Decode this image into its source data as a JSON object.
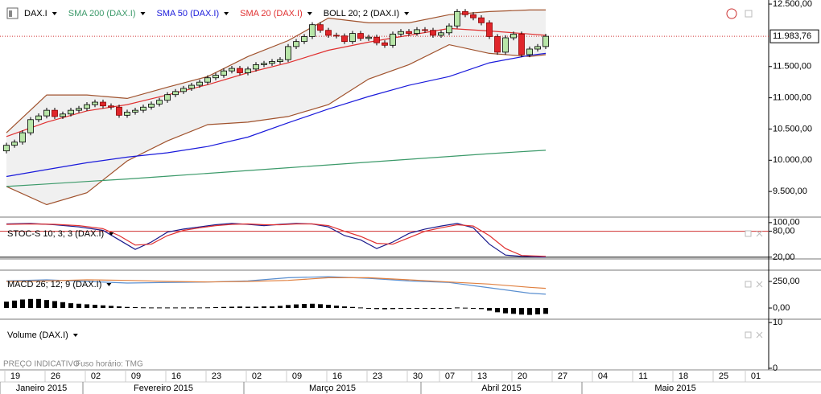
{
  "chart_data": [
    {
      "type": "candlestick",
      "xlim": [
        -0.8,
        94.7
      ],
      "xticks": [
        {
          "value": 0,
          "label": "19"
        },
        {
          "value": 5,
          "label": "26"
        },
        {
          "value": 10,
          "label": "02"
        },
        {
          "value": 15,
          "label": "09"
        },
        {
          "value": 20,
          "label": "16"
        },
        {
          "value": 25,
          "label": "23"
        },
        {
          "value": 30,
          "label": "02"
        },
        {
          "value": 35,
          "label": "09"
        },
        {
          "value": 40,
          "label": "16"
        },
        {
          "value": 45,
          "label": "23"
        },
        {
          "value": 50,
          "label": "30"
        },
        {
          "value": 54,
          "label": "07"
        },
        {
          "value": 58,
          "label": "13"
        },
        {
          "value": 63,
          "label": "20"
        },
        {
          "value": 68,
          "label": "27"
        },
        {
          "value": 73,
          "label": "04"
        },
        {
          "value": 78,
          "label": "11"
        },
        {
          "value": 83,
          "label": "18"
        },
        {
          "value": 88,
          "label": "25"
        },
        {
          "value": 92,
          "label": "01"
        }
      ],
      "month_ticks": [
        {
          "value": -0.8,
          "label": "Janeiro 2015"
        },
        {
          "value": 9.5,
          "label": "Fevereiro 2015"
        },
        {
          "value": 29.5,
          "label": "Março 2015"
        },
        {
          "value": 51.5,
          "label": "Abril 2015"
        },
        {
          "value": 71.5,
          "label": "Maio 2015"
        }
      ],
      "ylim": [
        9090,
        12565
      ],
      "yticks": [
        {
          "value": 12500,
          "label": "12.500,00"
        },
        {
          "value": 11500,
          "label": "11.500,00"
        },
        {
          "value": 11000,
          "label": "11.000,00"
        },
        {
          "value": 10500,
          "label": "10.500,00"
        },
        {
          "value": 10000,
          "label": "10.000,00"
        },
        {
          "value": 9500,
          "label": "9.500,00"
        }
      ],
      "candles": {
        "name": "DAX.I",
        "up_color": "#b8e6a8",
        "down_color": "#e0262b",
        "open": [
          10150,
          10240,
          10290,
          10440,
          10650,
          10710,
          10800,
          10700,
          10740,
          10800,
          10830,
          10890,
          10930,
          10870,
          10850,
          10720,
          10770,
          10800,
          10850,
          10900,
          10960,
          11050,
          11100,
          11150,
          11200,
          11250,
          11320,
          11360,
          11430,
          11470,
          11400,
          11460,
          11530,
          11550,
          11580,
          11610,
          11820,
          11900,
          11980,
          12170,
          12080,
          12000,
          11990,
          11900,
          12030,
          11950,
          11970,
          11880,
          11840,
          12020,
          12060,
          12030,
          12090,
          12080,
          12000,
          12040,
          12150,
          12380,
          12330,
          12280,
          12200,
          11980,
          11730,
          11960,
          12020,
          11690,
          11780,
          11820
        ],
        "high": [
          10280,
          10330,
          10480,
          10690,
          10750,
          10840,
          10840,
          10780,
          10840,
          10870,
          10930,
          10970,
          10970,
          10910,
          10890,
          10810,
          10840,
          10890,
          10940,
          11000,
          11090,
          11140,
          11190,
          11240,
          11290,
          11360,
          11400,
          11470,
          11510,
          11510,
          11500,
          11570,
          11590,
          11620,
          11650,
          11860,
          11940,
          12020,
          12210,
          12210,
          12120,
          12040,
          12030,
          12070,
          12070,
          12010,
          12010,
          11920,
          12060,
          12100,
          12100,
          12130,
          12130,
          12120,
          12080,
          12190,
          12420,
          12420,
          12370,
          12320,
          12240,
          12020,
          12000,
          12060,
          12060,
          11820,
          11860,
          12024
        ],
        "low": [
          10110,
          10200,
          10250,
          10400,
          10610,
          10670,
          10660,
          10660,
          10700,
          10760,
          10790,
          10850,
          10830,
          10810,
          10680,
          10680,
          10730,
          10760,
          10810,
          10860,
          10920,
          11010,
          11060,
          11110,
          11160,
          11210,
          11280,
          11320,
          11390,
          11360,
          11360,
          11420,
          11490,
          11510,
          11540,
          11570,
          11780,
          11860,
          11940,
          12040,
          11960,
          11950,
          11860,
          11860,
          11910,
          11910,
          11840,
          11800,
          11800,
          11980,
          11990,
          11990,
          12040,
          11960,
          11960,
          12000,
          12110,
          12290,
          12240,
          12160,
          11940,
          11690,
          11690,
          11920,
          11650,
          11650,
          11740,
          11780
        ],
        "close": [
          10240,
          10290,
          10440,
          10650,
          10710,
          10800,
          10700,
          10740,
          10800,
          10830,
          10890,
          10930,
          10870,
          10850,
          10720,
          10770,
          10800,
          10850,
          10900,
          10960,
          11050,
          11100,
          11150,
          11200,
          11250,
          11320,
          11360,
          11430,
          11470,
          11400,
          11460,
          11530,
          11550,
          11580,
          11610,
          11820,
          11900,
          11980,
          12170,
          12080,
          12000,
          11990,
          11900,
          12030,
          11950,
          11970,
          11880,
          11840,
          12020,
          12060,
          12030,
          12090,
          12080,
          12000,
          12040,
          12150,
          12380,
          12330,
          12280,
          12200,
          11980,
          11730,
          11960,
          12020,
          11690,
          11780,
          11820,
          11984
        ]
      },
      "series": [
        {
          "name": "SMA 200 (DAX.I)",
          "color": "#3c9a6a",
          "x": [
            0,
            5,
            10,
            15,
            20,
            25,
            30,
            35,
            40,
            45,
            50,
            55,
            60,
            65,
            67
          ],
          "values": [
            9580,
            9620,
            9660,
            9700,
            9745,
            9790,
            9835,
            9880,
            9925,
            9970,
            10015,
            10060,
            10105,
            10145,
            10160
          ]
        },
        {
          "name": "SMA 50 (DAX.I)",
          "color": "#1a1adb",
          "x": [
            0,
            5,
            10,
            15,
            20,
            25,
            30,
            35,
            40,
            45,
            50,
            55,
            60,
            65,
            67
          ],
          "values": [
            9740,
            9850,
            9960,
            10050,
            10120,
            10220,
            10370,
            10600,
            10820,
            11020,
            11200,
            11340,
            11560,
            11680,
            11710
          ]
        },
        {
          "name": "SMA 20 (DAX.I)",
          "color": "#e03030",
          "x": [
            0,
            5,
            10,
            15,
            20,
            25,
            30,
            35,
            40,
            45,
            50,
            55,
            60,
            65,
            67
          ],
          "values": [
            10380,
            10610,
            10790,
            10890,
            11045,
            11210,
            11400,
            11560,
            11760,
            11890,
            12000,
            12110,
            12070,
            12020,
            12000
          ]
        }
      ],
      "bands": {
        "name": "BOLL 20; 2 (DAX.I)",
        "color": "#a0522d",
        "fill": "#f0f0f0",
        "x": [
          0,
          5,
          10,
          15,
          20,
          25,
          30,
          35,
          40,
          45,
          50,
          55,
          60,
          65,
          67
        ],
        "upper": [
          10440,
          11045,
          11045,
          10990,
          11170,
          11340,
          11660,
          11915,
          12275,
          12200,
          12200,
          12330,
          12380,
          12405,
          12405
        ],
        "lower": [
          9580,
          9290,
          9480,
          9990,
          10310,
          10570,
          10610,
          10700,
          10890,
          11300,
          11530,
          11850,
          11710,
          11660,
          11690
        ]
      },
      "last_price": {
        "value": 11983.76,
        "label": "11.983,76",
        "color": "#d03030"
      }
    },
    {
      "type": "stochastic",
      "title": "STOC-S 10; 3; 3 (DAX.I)",
      "ylim": [
        16,
        109
      ],
      "yticks": [
        {
          "value": 100,
          "label": "100,00"
        },
        {
          "value": 80,
          "label": "80,00"
        },
        {
          "value": 20,
          "label": "20,00"
        }
      ],
      "hlines": [
        {
          "value": 80,
          "color": "#d03030"
        },
        {
          "value": 20,
          "color": "#000000"
        }
      ],
      "series": [
        {
          "color": "#1a1a8c",
          "x": [
            0,
            3,
            6,
            9,
            12,
            14,
            16,
            18,
            20,
            22,
            24,
            26,
            28,
            30,
            32,
            34,
            36,
            38,
            40,
            42,
            44,
            46,
            48,
            50,
            52,
            54,
            56,
            58,
            60,
            62,
            64,
            67
          ],
          "values": [
            97,
            98,
            95,
            90,
            82,
            60,
            38,
            55,
            78,
            85,
            90,
            95,
            98,
            96,
            93,
            96,
            98,
            97,
            90,
            70,
            60,
            40,
            55,
            75,
            85,
            92,
            98,
            88,
            50,
            25,
            22,
            20
          ]
        },
        {
          "color": "#e03030",
          "x": [
            0,
            3,
            6,
            9,
            12,
            14,
            16,
            18,
            20,
            22,
            24,
            26,
            28,
            30,
            32,
            34,
            36,
            38,
            40,
            42,
            44,
            46,
            48,
            50,
            52,
            54,
            56,
            58,
            60,
            62,
            64,
            67
          ],
          "values": [
            96,
            97,
            96,
            93,
            86,
            70,
            48,
            50,
            70,
            82,
            88,
            93,
            96,
            97,
            95,
            95,
            97,
            97,
            93,
            80,
            68,
            52,
            50,
            65,
            80,
            88,
            95,
            92,
            70,
            40,
            24,
            22
          ]
        }
      ]
    },
    {
      "type": "macd",
      "title": "MACD 26; 12; 9 (DAX.I)",
      "ylim": [
        -98,
        341
      ],
      "yticks": [
        {
          "value": 250,
          "label": "250,00"
        },
        {
          "value": 0,
          "label": "0,00"
        }
      ],
      "histogram": {
        "color": "#000000",
        "values": [
          60,
          70,
          80,
          85,
          85,
          75,
          65,
          55,
          45,
          40,
          35,
          30,
          25,
          20,
          15,
          10,
          8,
          6,
          5,
          5,
          5,
          5,
          5,
          5,
          5,
          6,
          8,
          10,
          12,
          14,
          12,
          12,
          15,
          15,
          20,
          28,
          34,
          38,
          40,
          36,
          30,
          22,
          15,
          10,
          5,
          -5,
          -10,
          -12,
          -10,
          -8,
          -5,
          -5,
          -8,
          -8,
          -5,
          -2,
          5,
          3,
          -2,
          -10,
          -25,
          -40,
          -50,
          -55,
          -62,
          -65,
          -60,
          -55
        ]
      },
      "series": [
        {
          "color": "#5a8fd0",
          "x": [
            0,
            5,
            10,
            15,
            20,
            25,
            30,
            35,
            40,
            45,
            50,
            55,
            60,
            65,
            67
          ],
          "values": [
            255,
            265,
            250,
            235,
            240,
            245,
            255,
            285,
            295,
            280,
            255,
            240,
            190,
            140,
            130
          ]
        },
        {
          "color": "#e08040",
          "x": [
            0,
            5,
            10,
            15,
            20,
            25,
            30,
            35,
            40,
            45,
            50,
            55,
            60,
            65,
            67
          ],
          "values": [
            250,
            255,
            265,
            260,
            250,
            245,
            250,
            260,
            285,
            285,
            265,
            245,
            225,
            195,
            185
          ]
        }
      ]
    },
    {
      "type": "volume",
      "title": "Volume (DAX.I)",
      "ylim": [
        -0.35,
        10.2
      ],
      "yticks": [
        10,
        0
      ]
    }
  ],
  "footer": {
    "note": "PREÇO INDICATIVO",
    "timezone": "Fuso horário: TMG"
  }
}
